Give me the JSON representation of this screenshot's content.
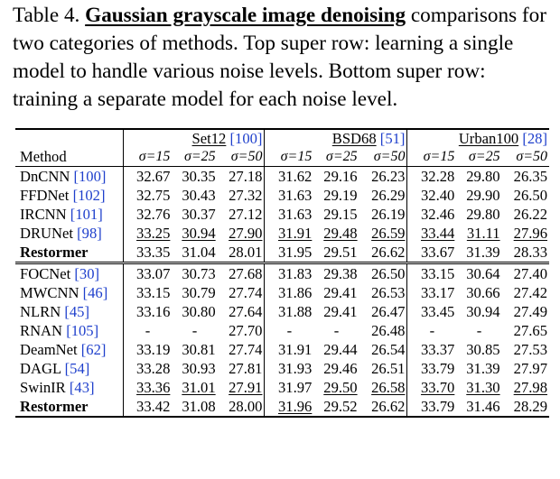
{
  "caption": {
    "prefix": "Table 4.",
    "title": "Gaussian grayscale image denoising",
    "rest": "comparisons for two categories of methods. Top super row: learning a single model to handle various noise levels. Bottom super row: training a separate model for each noise level."
  },
  "table": {
    "method_header": "Method",
    "datasets": [
      {
        "name": "Set12",
        "ref": "[100]"
      },
      {
        "name": "BSD68",
        "ref": "[51]"
      },
      {
        "name": "Urban100",
        "ref": "[28]"
      }
    ],
    "sigmas": [
      "σ=15",
      "σ=25",
      "σ=50"
    ],
    "group1": [
      {
        "method": "DnCNN",
        "ref": "[100]",
        "vals": [
          "32.67",
          "30.35",
          "27.18",
          "31.62",
          "29.16",
          "26.23",
          "32.28",
          "29.80",
          "26.35"
        ]
      },
      {
        "method": "FFDNet",
        "ref": "[102]",
        "vals": [
          "32.75",
          "30.43",
          "27.32",
          "31.63",
          "29.19",
          "26.29",
          "32.40",
          "29.90",
          "26.50"
        ]
      },
      {
        "method": "IRCNN",
        "ref": "[101]",
        "vals": [
          "32.76",
          "30.37",
          "27.12",
          "31.63",
          "29.15",
          "26.19",
          "32.46",
          "29.80",
          "26.22"
        ]
      },
      {
        "method": "DRUNet",
        "ref": "[98]",
        "vals": [
          "33.25",
          "30.94",
          "27.90",
          "31.91",
          "29.48",
          "26.59",
          "33.44",
          "31.11",
          "27.96"
        ]
      },
      {
        "method": "Restormer",
        "ref": "",
        "vals": [
          "33.35",
          "31.04",
          "28.01",
          "31.95",
          "29.51",
          "26.62",
          "33.67",
          "31.39",
          "28.33"
        ]
      }
    ],
    "group2": [
      {
        "method": "FOCNet",
        "ref": "[30]",
        "vals": [
          "33.07",
          "30.73",
          "27.68",
          "31.83",
          "29.38",
          "26.50",
          "33.15",
          "30.64",
          "27.40"
        ]
      },
      {
        "method": "MWCNN",
        "ref": "[46]",
        "vals": [
          "33.15",
          "30.79",
          "27.74",
          "31.86",
          "29.41",
          "26.53",
          "33.17",
          "30.66",
          "27.42"
        ]
      },
      {
        "method": "NLRN",
        "ref": "[45]",
        "vals": [
          "33.16",
          "30.80",
          "27.64",
          "31.88",
          "29.41",
          "26.47",
          "33.45",
          "30.94",
          "27.49"
        ]
      },
      {
        "method": "RNAN",
        "ref": "[105]",
        "vals": [
          "-",
          "-",
          "27.70",
          "-",
          "-",
          "26.48",
          "-",
          "-",
          "27.65"
        ]
      },
      {
        "method": "DeamNet",
        "ref": "[62]",
        "vals": [
          "33.19",
          "30.81",
          "27.74",
          "31.91",
          "29.44",
          "26.54",
          "33.37",
          "30.85",
          "27.53"
        ]
      },
      {
        "method": "DAGL",
        "ref": "[54]",
        "vals": [
          "33.28",
          "30.93",
          "27.81",
          "31.93",
          "29.46",
          "26.51",
          "33.79",
          "31.39",
          "27.97"
        ]
      },
      {
        "method": "SwinIR",
        "ref": "[43]",
        "vals": [
          "33.36",
          "31.01",
          "27.91",
          "31.97",
          "29.50",
          "26.58",
          "33.70",
          "31.30",
          "27.98"
        ]
      },
      {
        "method": "Restormer",
        "ref": "",
        "vals": [
          "33.42",
          "31.08",
          "28.00",
          "31.96",
          "29.52",
          "26.62",
          "33.79",
          "31.46",
          "28.29"
        ]
      }
    ]
  }
}
